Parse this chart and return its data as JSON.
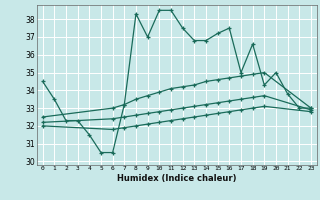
{
  "title": "",
  "xlabel": "Humidex (Indice chaleur)",
  "bg_color": "#c8e8e8",
  "grid_color": "#ffffff",
  "line_color": "#1a6b5a",
  "xlim": [
    -0.5,
    23.5
  ],
  "ylim": [
    29.8,
    38.8
  ],
  "yticks": [
    30,
    31,
    32,
    33,
    34,
    35,
    36,
    37,
    38
  ],
  "xticks": [
    0,
    1,
    2,
    3,
    4,
    5,
    6,
    7,
    8,
    9,
    10,
    11,
    12,
    13,
    14,
    15,
    16,
    17,
    18,
    19,
    20,
    21,
    22,
    23
  ],
  "series1_x": [
    0,
    1,
    2,
    3,
    4,
    5,
    6,
    7,
    8,
    9,
    10,
    11,
    12,
    13,
    14,
    15,
    16,
    17,
    18,
    19,
    20,
    21,
    22,
    23
  ],
  "series1_y": [
    34.5,
    33.5,
    32.3,
    32.3,
    31.5,
    30.5,
    30.5,
    33.2,
    38.3,
    37.0,
    38.5,
    38.5,
    37.5,
    36.8,
    36.8,
    37.2,
    37.5,
    35.0,
    36.6,
    34.3,
    35.0,
    33.8,
    33.0,
    33.0
  ],
  "series2_x": [
    0,
    6,
    7,
    8,
    9,
    10,
    11,
    12,
    13,
    14,
    15,
    16,
    17,
    18,
    19,
    23
  ],
  "series2_y": [
    32.5,
    33.0,
    33.2,
    33.5,
    33.7,
    33.9,
    34.1,
    34.2,
    34.3,
    34.5,
    34.6,
    34.7,
    34.8,
    34.9,
    35.0,
    33.0
  ],
  "series3_x": [
    0,
    6,
    7,
    8,
    9,
    10,
    11,
    12,
    13,
    14,
    15,
    16,
    17,
    18,
    19,
    23
  ],
  "series3_y": [
    32.2,
    32.4,
    32.5,
    32.6,
    32.7,
    32.8,
    32.9,
    33.0,
    33.1,
    33.2,
    33.3,
    33.4,
    33.5,
    33.6,
    33.7,
    32.9
  ],
  "series4_x": [
    0,
    6,
    7,
    8,
    9,
    10,
    11,
    12,
    13,
    14,
    15,
    16,
    17,
    18,
    19,
    23
  ],
  "series4_y": [
    32.0,
    31.8,
    31.9,
    32.0,
    32.1,
    32.2,
    32.3,
    32.4,
    32.5,
    32.6,
    32.7,
    32.8,
    32.9,
    33.0,
    33.1,
    32.8
  ]
}
